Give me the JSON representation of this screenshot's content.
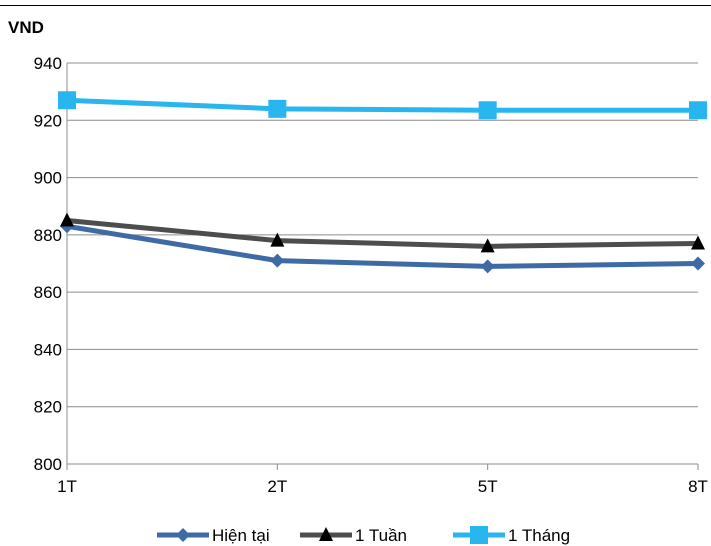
{
  "chart_data": {
    "type": "line",
    "title": "",
    "unit_label": "VND",
    "xlabel": "",
    "ylabel": "",
    "categories": [
      "1T",
      "2T",
      "5T",
      "8T"
    ],
    "ylim": [
      800,
      940
    ],
    "yticks": [
      800,
      820,
      840,
      860,
      880,
      900,
      920,
      940
    ],
    "grid": true,
    "legend_position": "bottom",
    "series": [
      {
        "name": "Hiện tại",
        "values": [
          883,
          871,
          869,
          870
        ],
        "color": "#3E6AA6",
        "marker": "diamond"
      },
      {
        "name": "1 Tuần",
        "values": [
          885,
          878,
          876,
          877
        ],
        "color": "#4D4D4D",
        "marker": "triangle"
      },
      {
        "name": "1 Tháng",
        "values": [
          927,
          924,
          923.5,
          923.5
        ],
        "color": "#29B6EE",
        "marker": "square"
      }
    ]
  }
}
